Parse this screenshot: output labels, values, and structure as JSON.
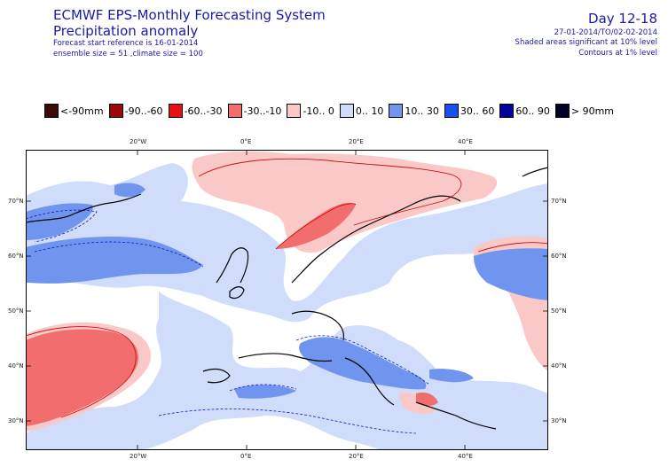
{
  "header": {
    "system": "ECMWF EPS-Monthly Forecasting System",
    "product": "Precipitation anomaly",
    "forecast_start": "Forecast start reference is 16-01-2014",
    "ensemble": "ensemble size = 51 ,climate size = 100",
    "day_range": "Day 12-18",
    "valid_period": "27-01-2014/TO/02-02-2014",
    "shading_note": "Shaded areas significant at 10% level",
    "contour_note": "Contours at 1% level"
  },
  "colors": {
    "text": "#1a1aa8",
    "lt_-90": "#3d0a0a",
    "-90_-60": "#9a0a0a",
    "-60_-30": "#e81010",
    "-30_-10": "#f26d6d",
    "-10_0": "#fbc8c8",
    "0_10": "#cfdcfa",
    "10_30": "#6f95ee",
    "30_60": "#1650ee",
    "60_90": "#03039a",
    "gt_90": "#020227"
  },
  "legend": [
    {
      "label": "<-90mm",
      "color": "#3d0a0a"
    },
    {
      "label": "-90..-60",
      "color": "#9a0a0a"
    },
    {
      "label": "-60..-30",
      "color": "#e81010"
    },
    {
      "label": "-30..-10",
      "color": "#f26d6d"
    },
    {
      "label": "-10.. 0",
      "color": "#fbc8c8"
    },
    {
      "label": "0.. 10",
      "color": "#cfdcfa"
    },
    {
      "label": "10.. 30",
      "color": "#6f95ee"
    },
    {
      "label": "30.. 60",
      "color": "#1650ee"
    },
    {
      "label": "60.. 90",
      "color": "#03039a"
    },
    {
      "label": "> 90mm",
      "color": "#020227"
    }
  ],
  "map": {
    "lon_labels": [
      "20°W",
      "0°E",
      "20°E",
      "40°E"
    ],
    "lat_labels": [
      "70°N",
      "60°N",
      "50°N",
      "40°N",
      "30°N"
    ]
  }
}
